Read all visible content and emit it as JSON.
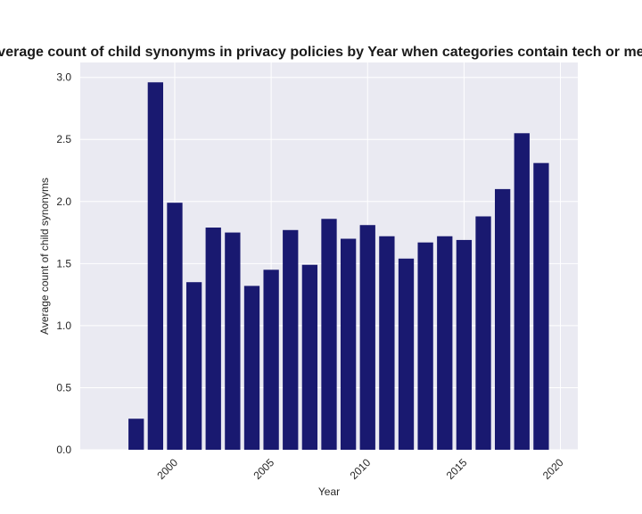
{
  "chart_data": {
    "type": "bar",
    "title": "Average count of child synonyms in privacy policies by Year when categories contain tech or media",
    "xlabel": "Year",
    "ylabel": "Average count of child synonyms",
    "x": [
      1998,
      1999,
      2000,
      2001,
      2002,
      2003,
      2004,
      2005,
      2006,
      2007,
      2008,
      2009,
      2010,
      2011,
      2012,
      2013,
      2014,
      2015,
      2016,
      2017,
      2018,
      2019
    ],
    "values": [
      0.25,
      2.96,
      1.99,
      1.35,
      1.79,
      1.75,
      1.32,
      1.45,
      1.77,
      1.49,
      1.86,
      1.7,
      1.81,
      1.72,
      1.54,
      1.67,
      1.72,
      1.69,
      1.88,
      2.1,
      2.55,
      2.31
    ],
    "xlim": [
      1995.1,
      2020.9
    ],
    "ylim": [
      0,
      3.12
    ],
    "xticks": [
      2000,
      2005,
      2010,
      2015,
      2020
    ],
    "yticks": [
      "0.0",
      "0.5",
      "1.0",
      "1.5",
      "2.0",
      "2.5",
      "3.0"
    ],
    "bar_color": "#191970",
    "background_color": "#eaeaf2",
    "grid": true
  }
}
